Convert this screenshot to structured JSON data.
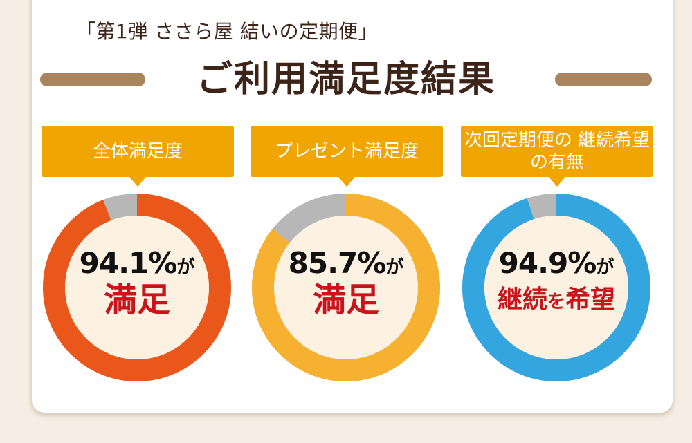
{
  "header": {
    "subtitle": "「第1弾 ささら屋 結いの定期便」",
    "title": "ご利用満足度結果"
  },
  "colors": {
    "brown": "#3d2418",
    "rule": "#a9855f",
    "label": "#f0a500",
    "gray": "#b7b7b7",
    "inner": "#fdf1e1",
    "red_text": "#c8141c"
  },
  "stats": [
    {
      "label": "全体満足度",
      "percent_text": "94.1%",
      "value": 94.1,
      "ga": "が",
      "word": "満足",
      "ring_color": "#e9571a"
    },
    {
      "label": "プレゼント満足度",
      "percent_text": "85.7%",
      "value": 85.7,
      "ga": "が",
      "word": "満足",
      "ring_color": "#f6b131"
    },
    {
      "label": "次回定期便の 継続希望の有無",
      "percent_text": "94.9%",
      "value": 94.9,
      "ga": "が",
      "word_a": "継続",
      "word_wo": "を",
      "word_b": "希望",
      "ring_color": "#33a6e0"
    }
  ]
}
